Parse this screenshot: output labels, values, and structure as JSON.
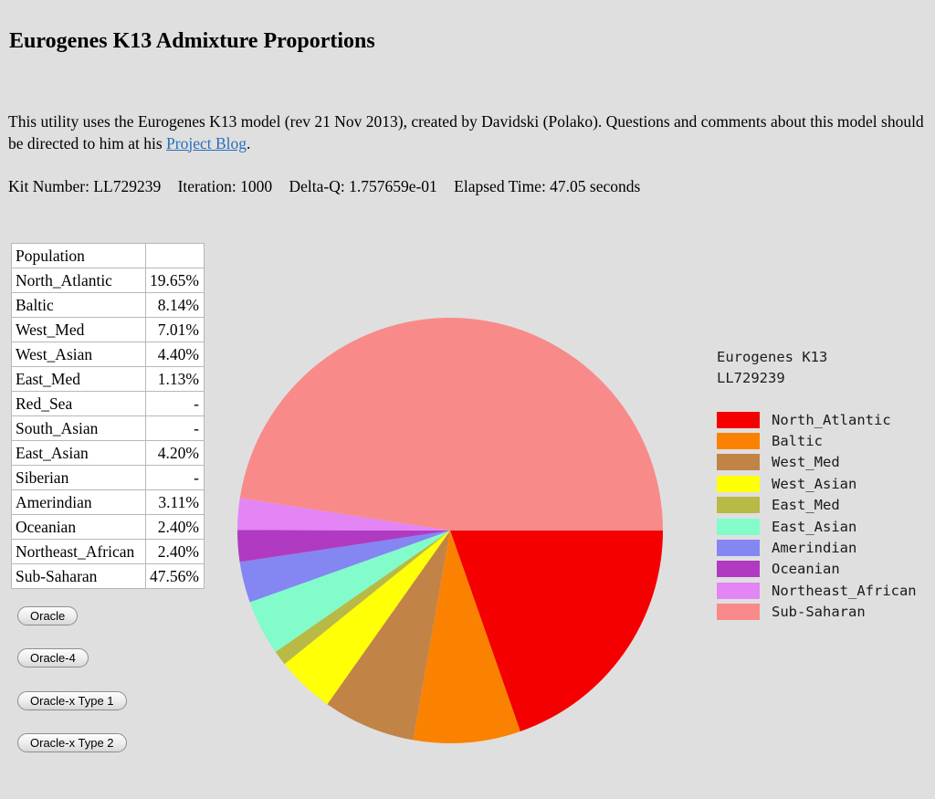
{
  "page": {
    "title": "Eurogenes K13 Admixture Proportions",
    "description": {
      "before_link": "This utility uses the Eurogenes K13 model (rev 21 Nov 2013), created by Davidski (Polako). Questions and comments about this model should be directed to him at his ",
      "link_text": "Project Blog",
      "after_link": "."
    },
    "kit_info": {
      "segments": [
        "Kit Number: LL729239",
        "Iteration: 1000",
        "Delta-Q: 1.757659e-01",
        "Elapsed Time: 47.05 seconds"
      ]
    }
  },
  "table": {
    "header": "Population",
    "rows": [
      {
        "population": "North_Atlantic",
        "value": "19.65%"
      },
      {
        "population": "Baltic",
        "value": "8.14%"
      },
      {
        "population": "West_Med",
        "value": "7.01%"
      },
      {
        "population": "West_Asian",
        "value": "4.40%"
      },
      {
        "population": "East_Med",
        "value": "1.13%"
      },
      {
        "population": "Red_Sea",
        "value": "-"
      },
      {
        "population": "South_Asian",
        "value": "-"
      },
      {
        "population": "East_Asian",
        "value": "4.20%"
      },
      {
        "population": "Siberian",
        "value": "-"
      },
      {
        "population": "Amerindian",
        "value": "3.11%"
      },
      {
        "population": "Oceanian",
        "value": "2.40%"
      },
      {
        "population": "Northeast_African",
        "value": "2.40%"
      },
      {
        "population": "Sub-Saharan",
        "value": "47.56%"
      }
    ]
  },
  "buttons": {
    "oracle": "Oracle",
    "oracle4": "Oracle-4",
    "oraclex_type1": "Oracle-x Type 1",
    "oraclex_type2": "Oracle-x Type 2"
  },
  "chart_data": {
    "type": "pie",
    "title": "Eurogenes K13",
    "subtitle": "LL729239",
    "start_angle_deg": 0,
    "direction": "clockwise",
    "legend_position": "right",
    "slices": [
      {
        "label": "North_Atlantic",
        "value": 19.65,
        "color": "#f40000"
      },
      {
        "label": "Baltic",
        "value": 8.14,
        "color": "#fb8200"
      },
      {
        "label": "West_Med",
        "value": 7.01,
        "color": "#c28347"
      },
      {
        "label": "West_Asian",
        "value": 4.4,
        "color": "#ffff05"
      },
      {
        "label": "East_Med",
        "value": 1.13,
        "color": "#b8ba45"
      },
      {
        "label": "East_Asian",
        "value": 4.2,
        "color": "#81fcca"
      },
      {
        "label": "Amerindian",
        "value": 3.11,
        "color": "#8486f2"
      },
      {
        "label": "Oceanian",
        "value": 2.4,
        "color": "#b03ac2"
      },
      {
        "label": "Northeast_African",
        "value": 2.4,
        "color": "#e385f5"
      },
      {
        "label": "Sub-Saharan",
        "value": 47.56,
        "color": "#f98a8a"
      }
    ]
  }
}
